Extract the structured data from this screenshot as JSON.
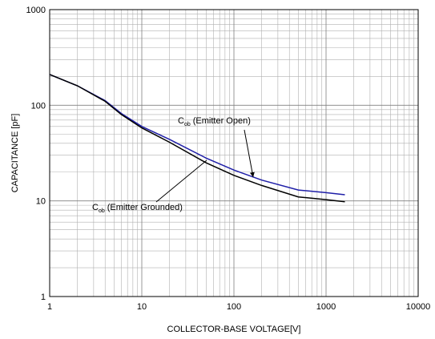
{
  "chart_data": {
    "type": "line",
    "xlabel": "COLLECTOR-BASE VOLTAGE[V]",
    "ylabel": "CAPACITANCE [pF]",
    "xscale": "log",
    "yscale": "log",
    "xlim": [
      1,
      10000
    ],
    "ylim": [
      1,
      1000
    ],
    "xticks": [
      1,
      10,
      100,
      1000,
      10000
    ],
    "yticks": [
      1,
      10,
      100,
      1000
    ],
    "grid": true,
    "x": [
      1,
      2,
      4,
      6,
      10,
      20,
      50,
      100,
      200,
      500,
      1000,
      1600
    ],
    "series": [
      {
        "name_main": "C",
        "name_sub": "ob",
        "name_rest": "(Emitter Open)",
        "color": "#1f1fa8",
        "values": [
          210,
          160,
          112,
          82,
          60,
          44,
          28,
          21,
          16.5,
          13,
          12.2,
          11.6
        ]
      },
      {
        "name_main": "C",
        "name_sub": "ob",
        "name_rest": "(Emitter Grounded)",
        "color": "#000000",
        "values": [
          210,
          160,
          110,
          80,
          58,
          41,
          25,
          18.5,
          14.5,
          11,
          10.3,
          9.8
        ]
      }
    ]
  }
}
